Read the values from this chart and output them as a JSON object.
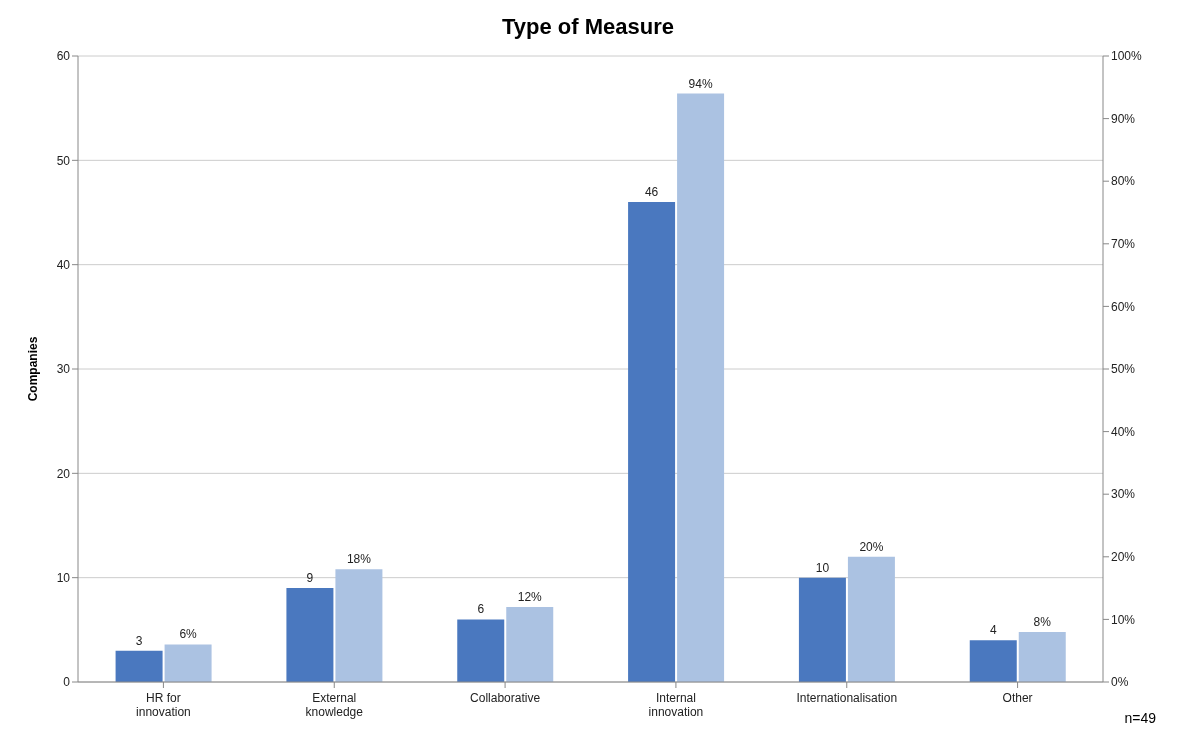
{
  "chart_data": {
    "type": "bar",
    "title": "Type of Measure",
    "ylabel": "Companies",
    "categories": [
      "HR for innovation",
      "External knowledge",
      "Collaborative",
      "Internal innovation",
      "Internationalisation",
      "Other"
    ],
    "series": [
      {
        "color": "#4a78bf",
        "values": [
          3,
          9,
          6,
          46,
          10,
          4
        ],
        "value_labels": [
          "3",
          "9",
          "6",
          "46",
          "10",
          "4"
        ]
      },
      {
        "color": "#abc2e2",
        "axis": "y2",
        "values": [
          6,
          18,
          12,
          94,
          20,
          8
        ],
        "value_labels": [
          "6%",
          "18%",
          "12%",
          "94%",
          "20%",
          "8%"
        ]
      }
    ],
    "ylim": [
      0,
      60
    ],
    "yticks": [
      0,
      10,
      20,
      30,
      40,
      50,
      60
    ],
    "y2lim": [
      0,
      100
    ],
    "y2ticks": [
      {
        "value": 0,
        "label": "0%"
      },
      {
        "value": 10,
        "label": "10%"
      },
      {
        "value": 20,
        "label": "20%"
      },
      {
        "value": 30,
        "label": "30%"
      },
      {
        "value": 40,
        "label": "40%"
      },
      {
        "value": 50,
        "label": "50%"
      },
      {
        "value": 60,
        "label": "60%"
      },
      {
        "value": 70,
        "label": "70%"
      },
      {
        "value": 80,
        "label": "80%"
      },
      {
        "value": 90,
        "label": "90%"
      },
      {
        "value": 100,
        "label": "100%"
      }
    ],
    "grid": "y",
    "legend": false,
    "annotations": [
      "n=49"
    ]
  }
}
